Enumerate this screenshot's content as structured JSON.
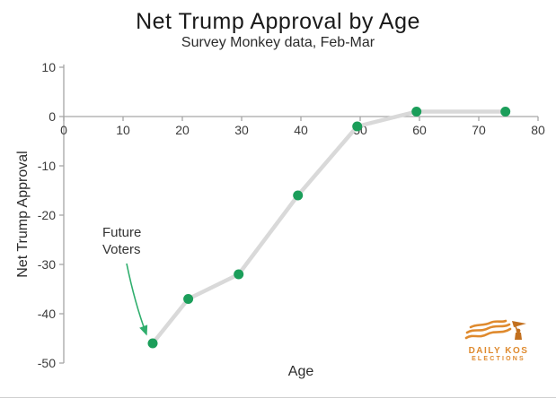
{
  "chart": {
    "title": "Net Trump Approval by Age",
    "subtitle": "Survey Monkey data, Feb-Mar",
    "xlabel": "Age",
    "ylabel": "Net Trump Approval"
  },
  "chart_data": {
    "type": "line",
    "title": "Net Trump Approval by Age",
    "subtitle": "Survey Monkey data, Feb-Mar",
    "xlabel": "Age",
    "ylabel": "Net Trump Approval",
    "xlim": [
      0,
      80
    ],
    "ylim": [
      -50,
      10
    ],
    "x_ticks": [
      0,
      10,
      20,
      30,
      40,
      50,
      60,
      70,
      80
    ],
    "y_ticks": [
      10,
      0,
      -10,
      -20,
      -30,
      -40,
      -50
    ],
    "grid": false,
    "legend": false,
    "series": [
      {
        "name": "Net Trump Approval",
        "x": [
          15,
          21,
          29.5,
          39.5,
          49.5,
          59.5,
          74.5
        ],
        "y": [
          -46,
          -37,
          -32,
          -16,
          -2,
          1,
          1
        ]
      }
    ],
    "annotation": {
      "text": "Future Voters",
      "target_x": 15,
      "target_y": -46
    },
    "colors": {
      "marker": "#1b9e5a",
      "line": "#d9d9d9",
      "axis": "#a6a6a6",
      "arrow": "#2fae6d",
      "tick_label": "#3b3b3b"
    }
  },
  "annotation": {
    "line1": "Future",
    "line2": "Voters"
  },
  "logo": {
    "line1": "DAILY KOS",
    "line2": "ELECTIONS",
    "color": "#df8a2e"
  }
}
